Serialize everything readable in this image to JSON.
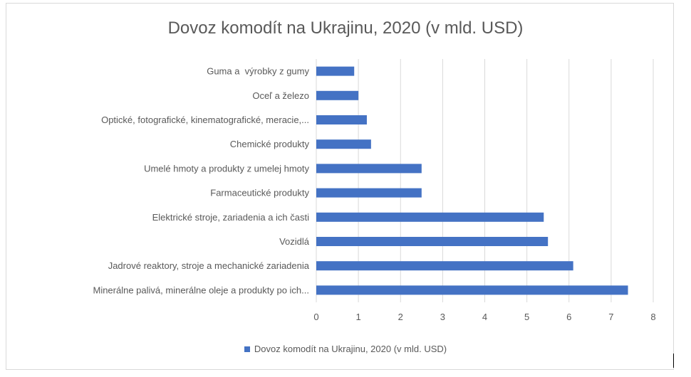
{
  "chart_data": {
    "type": "bar",
    "orientation": "horizontal",
    "title": "Dovoz komodít na Ukrajinu, 2020 (v mld. USD)",
    "categories": [
      "Guma a  výrobky z gumy",
      "Oceľ a železo",
      "Optické, fotografické, kinematografické, meracie,...",
      "Chemické produkty",
      "Umelé hmoty a produkty z umelej hmoty",
      "Farmaceutické produkty",
      "Elektrické stroje, zariadenia a ich časti",
      "Vozidlá",
      "Jadrové reaktory, stroje a mechanické zariadenia",
      "Minerálne palivá, minerálne oleje a produkty po ich..."
    ],
    "series": [
      {
        "name": "Dovoz komodít na Ukrajinu, 2020 (v mld. USD)",
        "values": [
          0.9,
          1.0,
          1.2,
          1.3,
          2.5,
          2.5,
          5.4,
          5.5,
          6.1,
          7.4
        ]
      }
    ],
    "xlim": [
      0,
      8
    ],
    "ticks": [
      "0",
      "1",
      "2",
      "3",
      "4",
      "5",
      "6",
      "7",
      "8"
    ],
    "xlabel": "",
    "ylabel": "",
    "grid": "vertical",
    "legend": "bottom",
    "colors": {
      "bar": "#4472c4",
      "grid": "#d9d9d9",
      "text": "#595959"
    }
  }
}
